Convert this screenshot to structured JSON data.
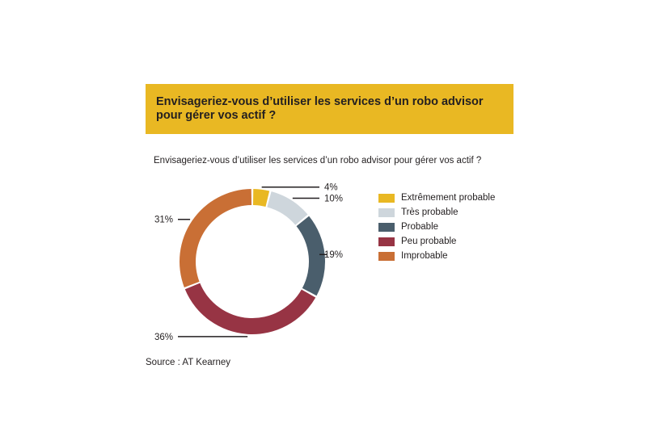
{
  "banner": {
    "title": "Envisageriez-vous d’utiliser les services d’un robo advisor pour gérer vos actif ?"
  },
  "chart_data": {
    "type": "pie",
    "subtitle": "Envisageriez-vous d’utiliser les services d’un robo advisor pour gérer vos actif ?",
    "categories": [
      "Extrêmement probable",
      "Très probable",
      "Probable",
      "Peu probable",
      "Improbable"
    ],
    "values": [
      4,
      10,
      19,
      36,
      31
    ],
    "value_labels": [
      "4%",
      "10%",
      "19%",
      "36%",
      "31%"
    ],
    "colors": [
      "#e9b823",
      "#ced6dc",
      "#4a5e6c",
      "#973444",
      "#c96f35"
    ],
    "donut": true,
    "legend_position": "right"
  },
  "source": "Source : AT Kearney"
}
